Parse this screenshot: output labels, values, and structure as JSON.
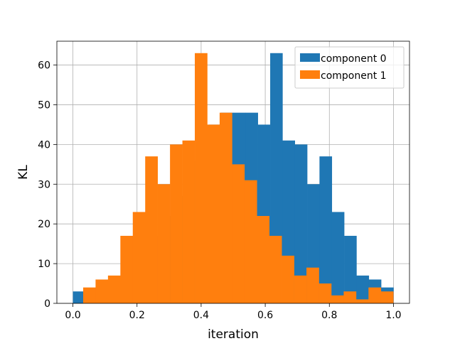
{
  "chart_data": {
    "type": "bar",
    "subtype": "histogram",
    "title": "",
    "xlabel": "iteration",
    "ylabel": "KL",
    "xlim": [
      -0.05,
      1.05
    ],
    "ylim": [
      0,
      66
    ],
    "xticks": [
      0.0,
      0.2,
      0.4,
      0.6,
      0.8,
      1.0
    ],
    "xtick_labels": [
      "0.0",
      "0.2",
      "0.4",
      "0.6",
      "0.8",
      "1.0"
    ],
    "yticks": [
      0,
      10,
      20,
      30,
      40,
      50,
      60
    ],
    "ytick_labels": [
      "0",
      "10",
      "20",
      "30",
      "40",
      "50",
      "60"
    ],
    "grid": true,
    "legend": "top-right",
    "series": [
      {
        "name": "component 0",
        "color": "#1f77b4",
        "bin_edges": [
          0.0,
          0.0385,
          0.0769,
          0.1154,
          0.1538,
          0.1923,
          0.2308,
          0.2692,
          0.3077,
          0.3462,
          0.3846,
          0.4231,
          0.4615,
          0.5,
          0.5385,
          0.5769,
          0.6154,
          0.6538,
          0.6923,
          0.7308,
          0.7692,
          0.8077,
          0.8462,
          0.8846,
          0.9231,
          0.9615,
          1.0
        ],
        "counts": [
          3,
          1,
          3,
          5,
          7,
          10,
          17,
          22,
          27,
          36,
          38,
          45,
          48,
          48,
          48,
          45,
          63,
          41,
          40,
          30,
          37,
          23,
          17,
          7,
          6,
          4
        ]
      },
      {
        "name": "component 1",
        "color": "#ff7f0e",
        "bin_edges": [
          0.032,
          0.0707,
          0.1094,
          0.1481,
          0.1868,
          0.2255,
          0.2642,
          0.3029,
          0.3416,
          0.3803,
          0.419,
          0.4577,
          0.4964,
          0.5351,
          0.5738,
          0.6125,
          0.6512,
          0.6899,
          0.7286,
          0.7673,
          0.806,
          0.8447,
          0.8834,
          0.9221,
          0.9608,
          0.9995
        ],
        "counts": [
          4,
          6,
          7,
          17,
          23,
          37,
          30,
          40,
          41,
          63,
          45,
          48,
          35,
          31,
          22,
          17,
          12,
          7,
          9,
          5,
          2,
          3,
          1,
          4,
          3
        ]
      }
    ]
  }
}
